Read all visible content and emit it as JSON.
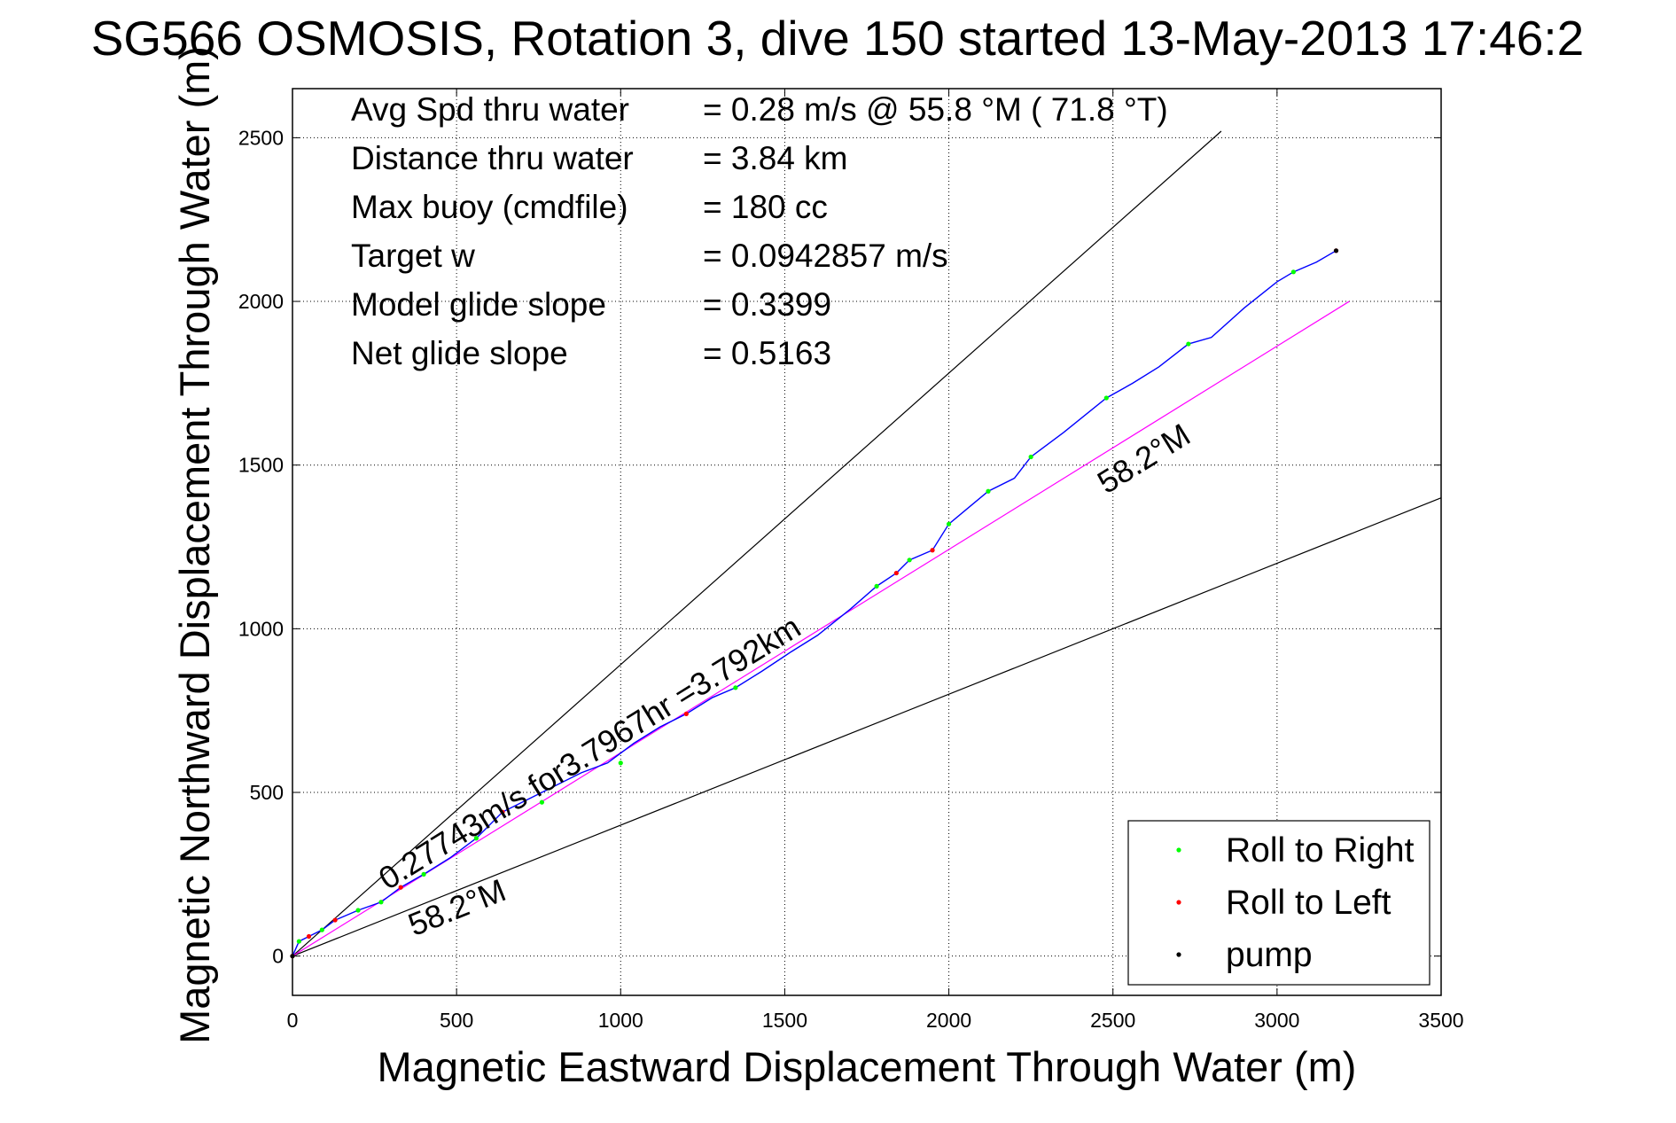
{
  "chart_data": {
    "type": "line",
    "title": "SG566 OSMOSIS, Rotation 3, dive 150 started 13-May-2013 17:46:2",
    "xlabel": "Magnetic Eastward Displacement Through Water (m)",
    "ylabel": "Magnetic Northward Displacement Through Water (m)",
    "xlim": [
      0,
      3500
    ],
    "ylim": [
      -120,
      2650
    ],
    "x_ticks": [
      0,
      500,
      1000,
      1500,
      2000,
      2500,
      3000,
      3500
    ],
    "y_ticks": [
      0,
      500,
      1000,
      1500,
      2000,
      2500
    ],
    "grid": true,
    "stats": [
      {
        "label": "Avg Spd thru water",
        "value": "=  0.28 m/s @  55.8 °M ( 71.8 °T)"
      },
      {
        "label": "Distance thru water",
        "value": "=  3.84 km"
      },
      {
        "label": "Max buoy (cmdfile)",
        "value": "= 180 cc"
      },
      {
        "label": "Target w",
        "value": "= 0.0942857 m/s"
      },
      {
        "label": "Model glide slope",
        "value": "= 0.3399"
      },
      {
        "label": "Net glide slope",
        "value": "= 0.5163"
      }
    ],
    "track": {
      "color": "#0000ff",
      "x": [
        0,
        20,
        50,
        90,
        130,
        200,
        270,
        330,
        400,
        480,
        560,
        640,
        720,
        800,
        880,
        960,
        1040,
        1120,
        1200,
        1280,
        1350,
        1430,
        1520,
        1600,
        1700,
        1780,
        1840,
        1880,
        1950,
        2000,
        2060,
        2120,
        2200,
        2250,
        2350,
        2480,
        2560,
        2640,
        2730,
        2800,
        2900,
        3000,
        3050,
        3120,
        3180
      ],
      "y": [
        0,
        45,
        60,
        80,
        110,
        140,
        165,
        210,
        250,
        300,
        360,
        440,
        480,
        520,
        560,
        590,
        650,
        700,
        740,
        790,
        820,
        870,
        930,
        980,
        1060,
        1130,
        1170,
        1210,
        1240,
        1320,
        1370,
        1420,
        1460,
        1525,
        1600,
        1705,
        1750,
        1800,
        1870,
        1890,
        1980,
        2060,
        2090,
        2120,
        2155
      ]
    },
    "roll_points": {
      "right": {
        "color": "#00ff00",
        "x": [
          20,
          90,
          200,
          270,
          400,
          560,
          760,
          1000,
          1350,
          1780,
          1880,
          2000,
          2120,
          2250,
          2480,
          2730,
          3050
        ],
        "y": [
          45,
          80,
          140,
          165,
          250,
          360,
          470,
          590,
          820,
          1130,
          1210,
          1320,
          1420,
          1525,
          1705,
          1870,
          2090
        ]
      },
      "left": {
        "color": "#ff0000",
        "x": [
          0,
          50,
          130,
          330,
          640,
          1200,
          1840,
          1950,
          3180
        ],
        "y": [
          0,
          60,
          110,
          210,
          440,
          740,
          1170,
          1240,
          2155
        ]
      },
      "pump": {
        "color": "#000000",
        "x": [
          0,
          3180
        ],
        "y": [
          0,
          2155
        ]
      }
    },
    "reference_lines": [
      {
        "name": "upper-bound",
        "color": "#000000",
        "x": [
          0,
          2830
        ],
        "y": [
          0,
          2520
        ]
      },
      {
        "name": "lower-bound",
        "color": "#000000",
        "x": [
          0,
          3500
        ],
        "y": [
          0,
          1400
        ]
      },
      {
        "name": "course-line",
        "color": "#ff00ff",
        "x": [
          0,
          3220
        ],
        "y": [
          0,
          2000
        ]
      }
    ],
    "annotations": [
      {
        "text": "0.27743m/s for3.7967hr =3.792km",
        "x": 290,
        "y": 200,
        "angle_deg": 31.8
      },
      {
        "text": "58.2°M",
        "x": 370,
        "y": 60,
        "angle_deg": 21.8
      },
      {
        "text": "58.2°M",
        "x": 2480,
        "y": 1410,
        "angle_deg": 31.8
      }
    ],
    "legend": {
      "placement": "bottom-right",
      "entries": [
        {
          "label": "Roll to Right",
          "color": "#00ff00"
        },
        {
          "label": "Roll to Left",
          "color": "#ff0000"
        },
        {
          "label": "pump",
          "color": "#000000"
        }
      ]
    }
  }
}
